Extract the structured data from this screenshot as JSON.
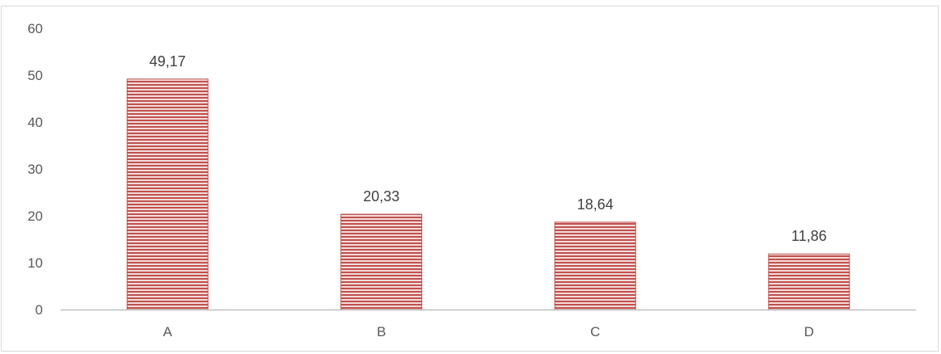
{
  "chart_data": {
    "type": "bar",
    "categories": [
      "A",
      "B",
      "C",
      "D"
    ],
    "values": [
      49.17,
      20.33,
      18.64,
      11.86
    ],
    "data_labels": [
      "49,17",
      "20,33",
      "18,64",
      "11,86"
    ],
    "y_ticks": [
      "0",
      "10",
      "20",
      "30",
      "40",
      "50",
      "60"
    ],
    "ylim": [
      0,
      60
    ],
    "grid": false,
    "legend": "none",
    "bar_color": "#c0504d",
    "bar_stripe_color": "#f2dcdb",
    "title": "",
    "xlabel": "",
    "ylabel": ""
  }
}
